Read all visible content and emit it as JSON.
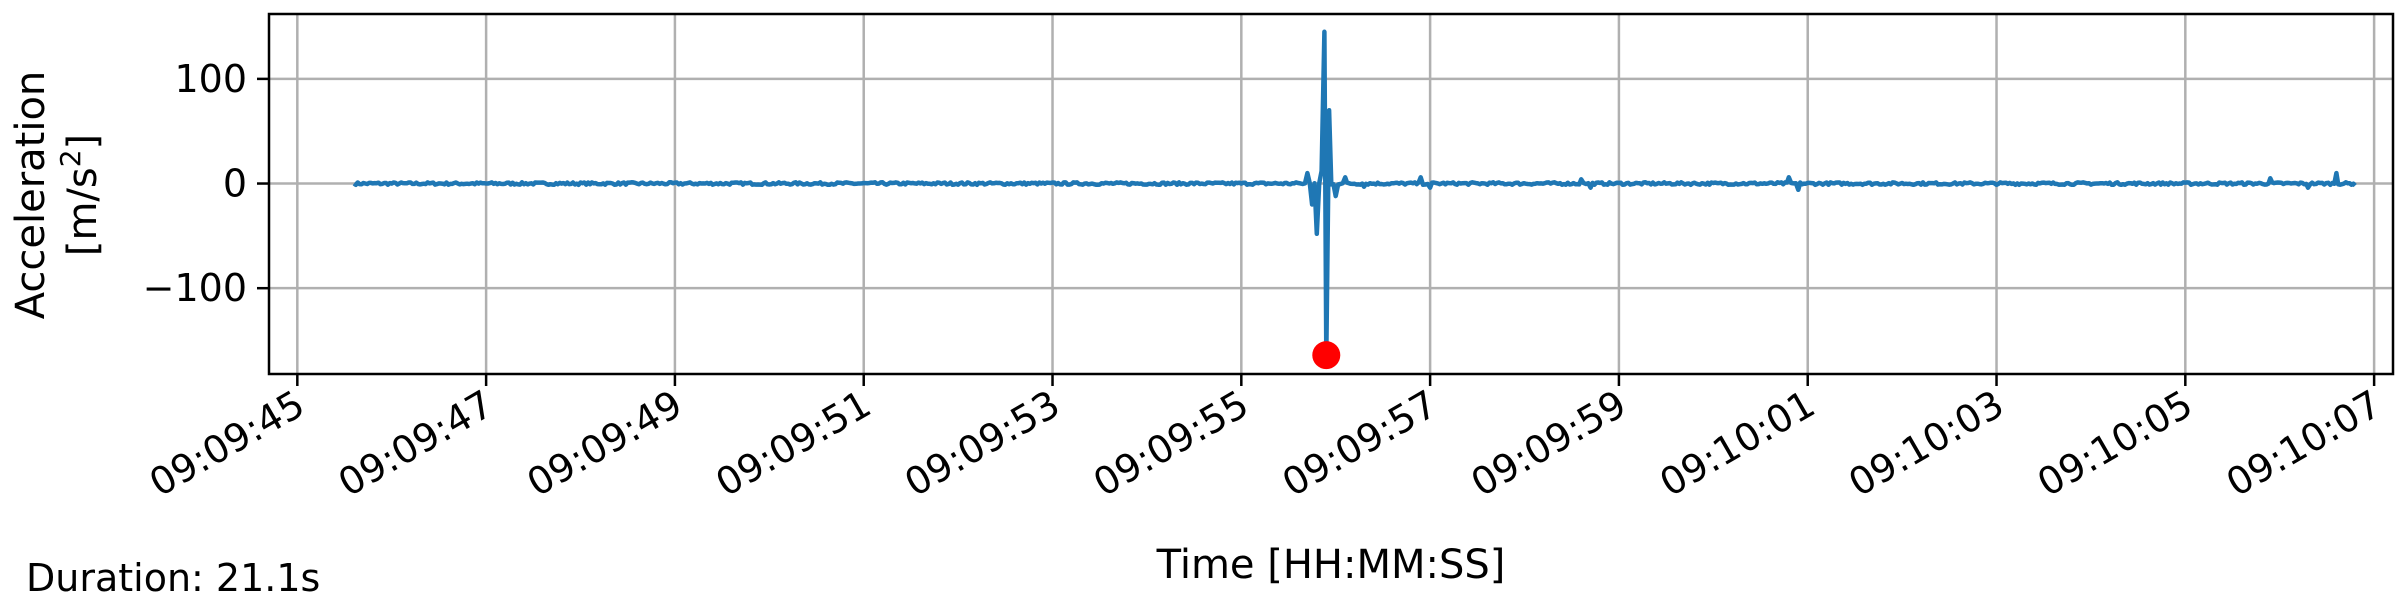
{
  "chart_data": {
    "type": "line",
    "xlabel": "Time [HH:MM:SS]",
    "ylabel_line1": "Acceleration",
    "ylabel_unit_prefix": "[m/s",
    "ylabel_unit_exp": "2",
    "ylabel_unit_suffix": "]",
    "x_start": "09:09:45.6",
    "x_end": "09:10:06.8",
    "xlim_seconds_after_09_09_45": [
      -0.3,
      22.2
    ],
    "ylim": [
      -182,
      162
    ],
    "x_ticks": [
      "09:09:45",
      "09:09:47",
      "09:09:49",
      "09:09:51",
      "09:09:53",
      "09:09:55",
      "09:09:57",
      "09:09:59",
      "09:10:01",
      "09:10:03",
      "09:10:05",
      "09:10:07"
    ],
    "y_ticks": [
      100,
      0,
      -100
    ],
    "y_tick_labels": [
      "100",
      "0",
      "−100"
    ],
    "grid": true,
    "series": [
      {
        "color": "#1f77b4",
        "points": [
          {
            "x": "09:09:45.6",
            "y": 0
          },
          {
            "x": "09:09:55.6",
            "y": 0.5
          },
          {
            "x": "09:09:55.7",
            "y": 10
          },
          {
            "x": "09:09:55.75",
            "y": -20
          },
          {
            "x": "09:09:55.8",
            "y": -48
          },
          {
            "x": "09:09:55.85",
            "y": 12
          },
          {
            "x": "09:09:55.88",
            "y": 145
          },
          {
            "x": "09:09:55.9",
            "y": -165
          },
          {
            "x": "09:09:55.93",
            "y": 70
          },
          {
            "x": "09:09:56.0",
            "y": -12
          },
          {
            "x": "09:09:56.1",
            "y": 6
          },
          {
            "x": "09:09:56.3",
            "y": -3
          },
          {
            "x": "09:09:56.9",
            "y": 6
          },
          {
            "x": "09:09:57.0",
            "y": -4
          },
          {
            "x": "09:09:58.6",
            "y": 4
          },
          {
            "x": "09:09:58.7",
            "y": -4
          },
          {
            "x": "09:10:00.8",
            "y": 6
          },
          {
            "x": "09:10:00.9",
            "y": -6
          },
          {
            "x": "09:10:05.9",
            "y": 5
          },
          {
            "x": "09:10:06.3",
            "y": -4
          },
          {
            "x": "09:10:06.6",
            "y": 10
          },
          {
            "x": "09:10:06.8",
            "y": -2
          }
        ]
      }
    ],
    "marker": {
      "x": "09:09:55.9",
      "y": -164,
      "color": "#ff0000"
    }
  },
  "footnote": {
    "duration": "Duration: 21.1s"
  }
}
